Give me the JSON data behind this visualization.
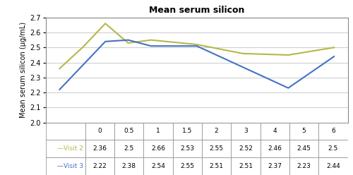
{
  "title": "Mean serum silicon",
  "ylabel": "Mean serum silicon (μg/mL)",
  "x": [
    0,
    0.5,
    1,
    1.5,
    2,
    3,
    4,
    5,
    6
  ],
  "visit2": [
    2.36,
    2.5,
    2.66,
    2.53,
    2.55,
    2.52,
    2.46,
    2.45,
    2.5
  ],
  "visit3": [
    2.22,
    2.38,
    2.54,
    2.55,
    2.51,
    2.51,
    2.37,
    2.23,
    2.44
  ],
  "visit2_color": "#b5b84a",
  "visit3_color": "#4472c4",
  "ylim_min": 2.0,
  "ylim_max": 2.7,
  "yticks": [
    2.0,
    2.1,
    2.2,
    2.3,
    2.4,
    2.5,
    2.6,
    2.7
  ],
  "xtick_labels": [
    "0",
    "0.5",
    "1",
    "1.5",
    "2",
    "3",
    "4",
    "5",
    "6"
  ],
  "table_visit2": [
    "2.36",
    "2.5",
    "2.66",
    "2.53",
    "2.55",
    "2.52",
    "2.46",
    "2.45",
    "2.5"
  ],
  "table_visit3": [
    "2.22",
    "2.38",
    "2.54",
    "2.55",
    "2.51",
    "2.51",
    "2.37",
    "2.23",
    "2.44"
  ],
  "legend_labels": [
    "—Visit 2",
    "—Visit 3"
  ],
  "bg_color": "#ffffff",
  "grid_color": "#d0d0d0",
  "figsize": [
    5.0,
    2.48
  ],
  "dpi": 100
}
